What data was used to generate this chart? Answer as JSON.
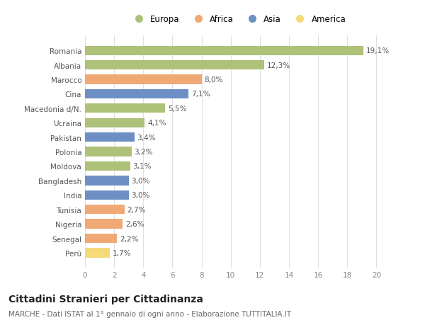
{
  "categories": [
    "Romania",
    "Albania",
    "Marocco",
    "Cina",
    "Macedonia d/N.",
    "Ucraina",
    "Pakistan",
    "Polonia",
    "Moldova",
    "Bangladesh",
    "India",
    "Tunisia",
    "Nigeria",
    "Senegal",
    "Perù"
  ],
  "values": [
    19.1,
    12.3,
    8.0,
    7.1,
    5.5,
    4.1,
    3.4,
    3.2,
    3.1,
    3.0,
    3.0,
    2.7,
    2.6,
    2.2,
    1.7
  ],
  "labels": [
    "19,1%",
    "12,3%",
    "8,0%",
    "7,1%",
    "5,5%",
    "4,1%",
    "3,4%",
    "3,2%",
    "3,1%",
    "3,0%",
    "3,0%",
    "2,7%",
    "2,6%",
    "2,2%",
    "1,7%"
  ],
  "colors": [
    "#adc178",
    "#adc178",
    "#f0a875",
    "#6e8fc4",
    "#adc178",
    "#adc178",
    "#6e8fc4",
    "#adc178",
    "#adc178",
    "#6e8fc4",
    "#6e8fc4",
    "#f0a875",
    "#f0a875",
    "#f0a875",
    "#f5d97a"
  ],
  "legend": [
    {
      "label": "Europa",
      "color": "#adc178"
    },
    {
      "label": "Africa",
      "color": "#f0a875"
    },
    {
      "label": "Asia",
      "color": "#6e8fc4"
    },
    {
      "label": "America",
      "color": "#f5d97a"
    }
  ],
  "xlim": [
    0,
    21
  ],
  "xticks": [
    0,
    2,
    4,
    6,
    8,
    10,
    12,
    14,
    16,
    18,
    20
  ],
  "title": "Cittadini Stranieri per Cittadinanza",
  "subtitle": "MARCHE - Dati ISTAT al 1° gennaio di ogni anno - Elaborazione TUTTITALIA.IT",
  "background_color": "#ffffff",
  "grid_color": "#e0e0e0",
  "bar_height": 0.65,
  "label_fontsize": 7.5,
  "tick_fontsize": 7.5,
  "title_fontsize": 10,
  "subtitle_fontsize": 7.5
}
